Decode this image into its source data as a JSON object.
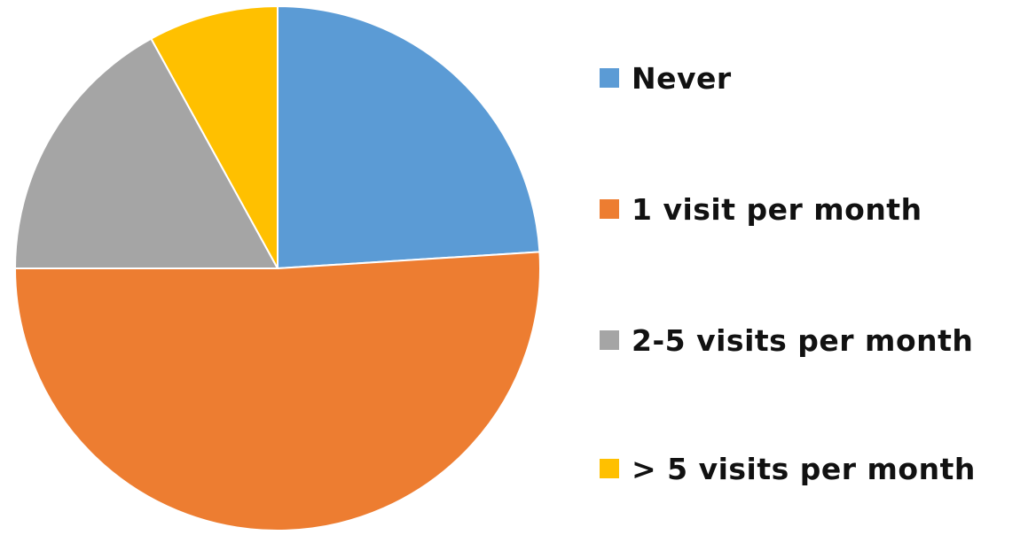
{
  "chart_data": {
    "type": "pie",
    "title": "",
    "slices": [
      {
        "label": "Never",
        "value": 24,
        "color": "#5B9BD5"
      },
      {
        "label": "1 visit per month",
        "value": 51,
        "color": "#ED7D31"
      },
      {
        "label": "2-5 visits per month",
        "value": 17,
        "color": "#A5A5A5"
      },
      {
        "label": "> 5 visits per month",
        "value": 8,
        "color": "#FFC000"
      }
    ],
    "start_angle_deg": 0,
    "direction": "clockwise",
    "legend_position": "right"
  }
}
